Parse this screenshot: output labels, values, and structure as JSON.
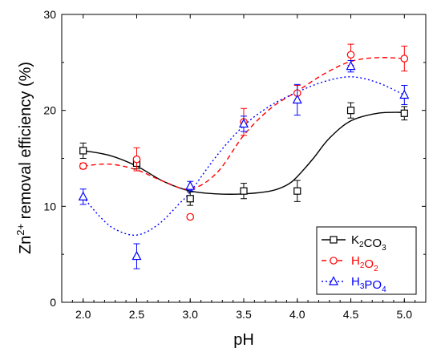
{
  "chart_data": {
    "type": "scatter",
    "xlabel": "pH",
    "ylabel_prefix": "Zn",
    "ylabel_sup": "2+",
    "ylabel_suffix": " removal efficiency (%)",
    "xlim": [
      1.8,
      5.2
    ],
    "ylim": [
      0,
      30
    ],
    "x_ticks": [
      2.0,
      2.5,
      3.0,
      3.5,
      4.0,
      4.5,
      5.0
    ],
    "x_tick_labels": [
      "2.0",
      "2.5",
      "3.0",
      "3.5",
      "4.0",
      "4.5",
      "5.0"
    ],
    "y_ticks": [
      0,
      10,
      20,
      30
    ],
    "y_tick_labels": [
      "0",
      "10",
      "20",
      "30"
    ],
    "grid": false,
    "legend_position": "bottom-right",
    "series": [
      {
        "name_parts": [
          [
            "K",
            ""
          ],
          [
            "2",
            "sub"
          ],
          [
            "CO",
            ""
          ],
          [
            "3",
            "sub"
          ]
        ],
        "color": "#000000",
        "marker": "square",
        "line_style": "solid",
        "x": [
          2.0,
          2.5,
          3.0,
          3.5,
          4.0,
          4.5,
          5.0
        ],
        "y": [
          15.8,
          14.5,
          10.8,
          11.6,
          11.6,
          20.0,
          19.7
        ],
        "err": [
          0.8,
          0.6,
          0.7,
          0.8,
          1.1,
          0.8,
          0.7
        ],
        "fit": [
          [
            2.0,
            15.8
          ],
          [
            2.25,
            15.3
          ],
          [
            2.5,
            14.2
          ],
          [
            2.75,
            12.6
          ],
          [
            3.0,
            11.6
          ],
          [
            3.25,
            11.3
          ],
          [
            3.5,
            11.3
          ],
          [
            3.75,
            11.6
          ],
          [
            3.9,
            12.2
          ],
          [
            4.0,
            13.1
          ],
          [
            4.15,
            15.0
          ],
          [
            4.3,
            17.1
          ],
          [
            4.5,
            18.9
          ],
          [
            4.75,
            19.7
          ],
          [
            5.0,
            19.8
          ]
        ]
      },
      {
        "name_parts": [
          [
            "H",
            ""
          ],
          [
            "2",
            "sub"
          ],
          [
            "O",
            ""
          ],
          [
            "2",
            "sub"
          ]
        ],
        "color": "#ff0000",
        "marker": "circle",
        "line_style": "dashed",
        "x": [
          2.0,
          2.5,
          3.0,
          3.5,
          4.0,
          4.5,
          5.0
        ],
        "y": [
          14.2,
          14.9,
          8.9,
          18.8,
          21.8,
          25.8,
          25.4
        ],
        "err": [
          0.3,
          1.2,
          0.2,
          1.4,
          0.8,
          1.1,
          1.3
        ],
        "fit": [
          [
            2.0,
            14.2
          ],
          [
            2.25,
            14.4
          ],
          [
            2.5,
            13.8
          ],
          [
            2.75,
            12.6
          ],
          [
            3.0,
            11.8
          ],
          [
            3.25,
            13.5
          ],
          [
            3.5,
            17.4
          ],
          [
            3.75,
            20.2
          ],
          [
            4.0,
            22.0
          ],
          [
            4.25,
            23.8
          ],
          [
            4.5,
            25.1
          ],
          [
            4.75,
            25.5
          ],
          [
            5.0,
            25.4
          ]
        ]
      },
      {
        "name_parts": [
          [
            "H",
            ""
          ],
          [
            "3",
            "sub"
          ],
          [
            "PO",
            ""
          ],
          [
            "4",
            "sub"
          ]
        ],
        "color": "#0000ff",
        "marker": "triangle",
        "line_style": "dotted",
        "x": [
          2.0,
          2.5,
          3.0,
          3.5,
          4.0,
          4.5,
          5.0
        ],
        "y": [
          11.0,
          4.8,
          12.1,
          18.6,
          21.1,
          24.6,
          21.6
        ],
        "err": [
          0.8,
          1.3,
          0.5,
          0.8,
          1.6,
          0.6,
          1.0
        ],
        "fit": [
          [
            2.0,
            11.0
          ],
          [
            2.15,
            9.0
          ],
          [
            2.3,
            7.6
          ],
          [
            2.5,
            7.0
          ],
          [
            2.7,
            8.1
          ],
          [
            2.9,
            10.3
          ],
          [
            3.0,
            11.5
          ],
          [
            3.25,
            15.3
          ],
          [
            3.5,
            18.4
          ],
          [
            3.75,
            20.5
          ],
          [
            4.0,
            21.9
          ],
          [
            4.25,
            23.0
          ],
          [
            4.5,
            23.5
          ],
          [
            4.75,
            22.9
          ],
          [
            5.0,
            21.6
          ]
        ]
      }
    ]
  }
}
